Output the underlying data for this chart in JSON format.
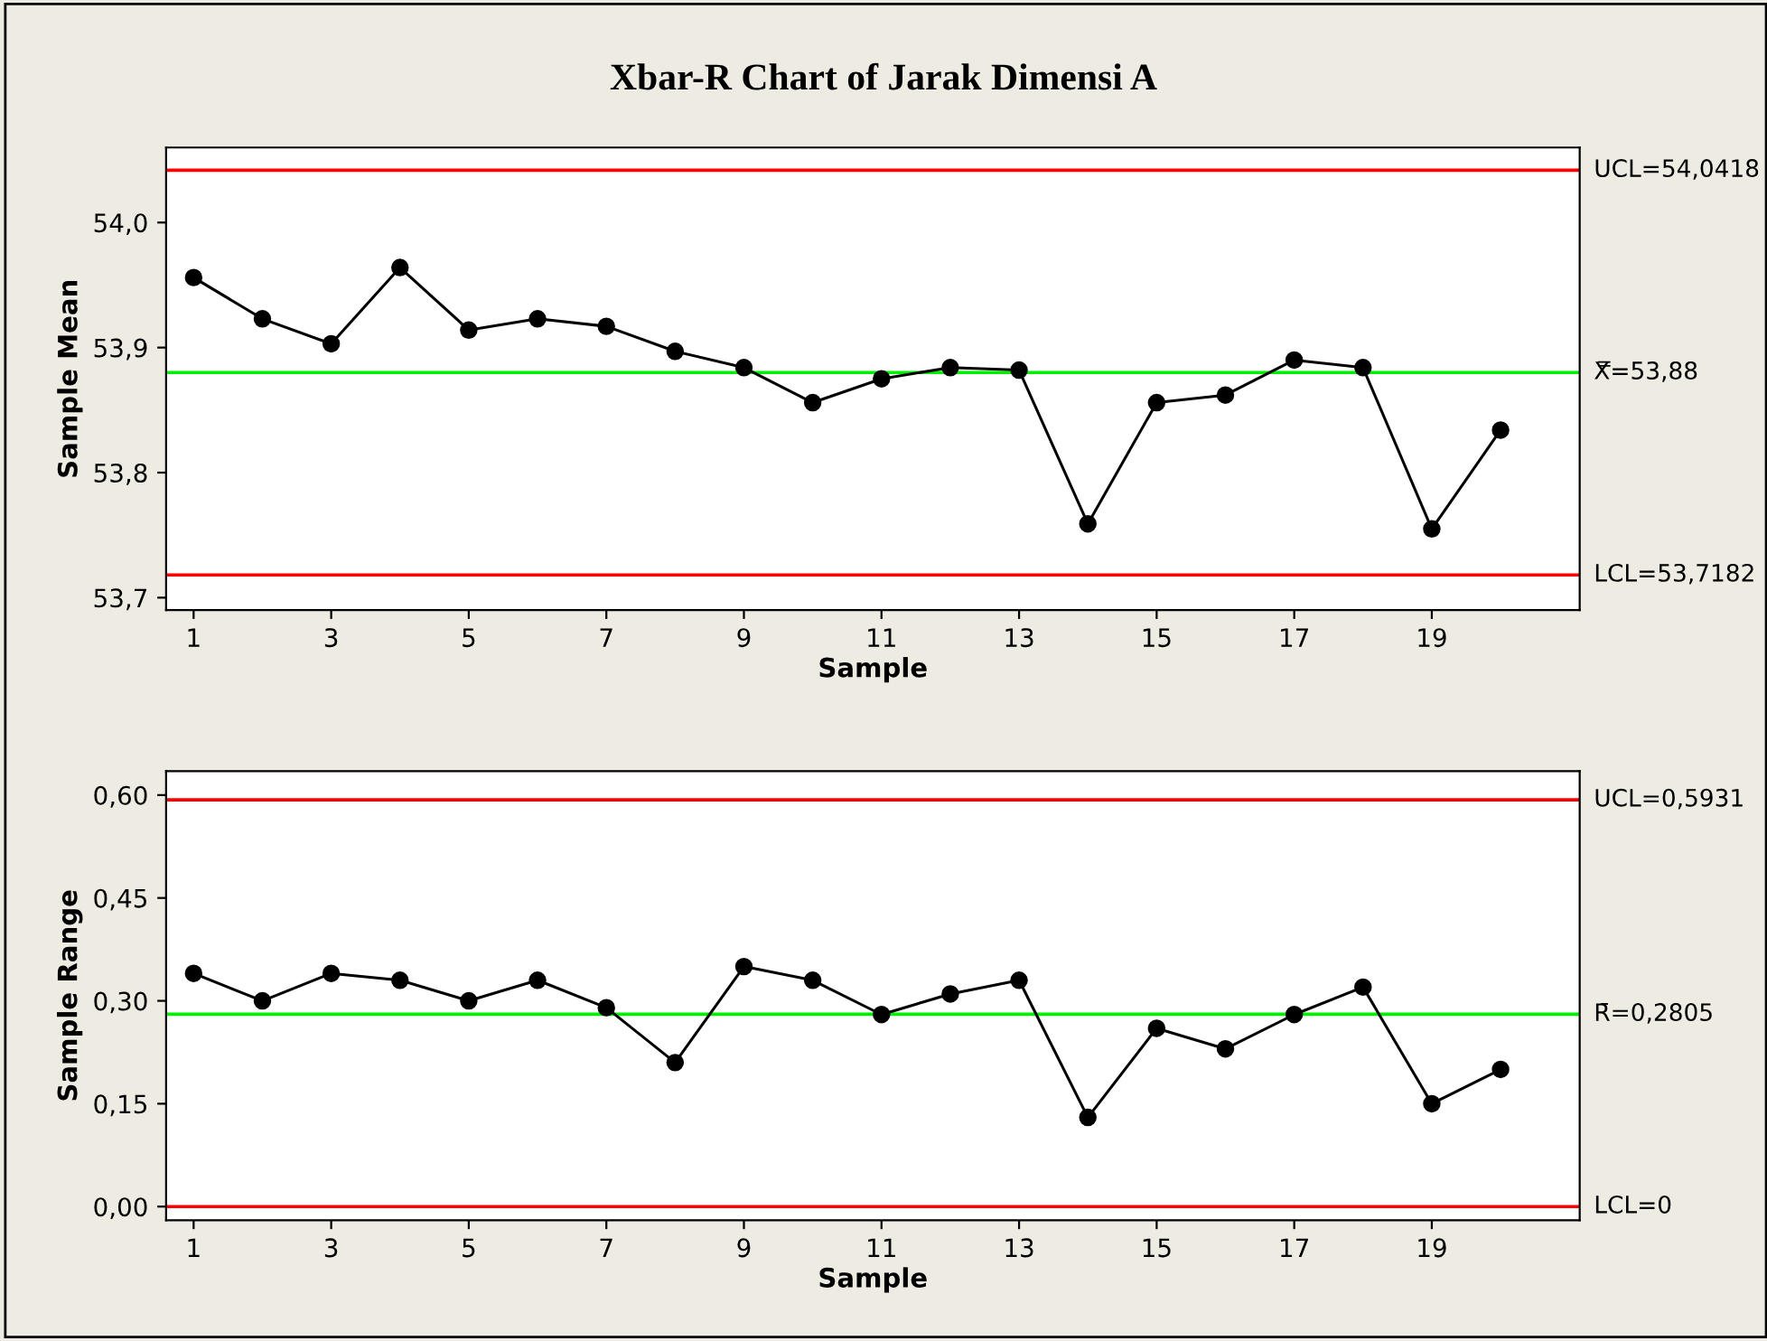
{
  "chart_data": [
    {
      "type": "line",
      "title": "Xbar-R Chart of Jarak Dimensi A",
      "xlabel": "Sample",
      "ylabel": "Sample Mean",
      "x": [
        1,
        2,
        3,
        4,
        5,
        6,
        7,
        8,
        9,
        10,
        11,
        12,
        13,
        14,
        15,
        16,
        17,
        18,
        19,
        20
      ],
      "series": [
        {
          "color": "#000000",
          "values": [
            53.956,
            53.923,
            53.903,
            53.964,
            53.914,
            53.923,
            53.917,
            53.897,
            53.884,
            53.856,
            53.875,
            53.884,
            53.882,
            53.759,
            53.856,
            53.862,
            53.89,
            53.884,
            53.755,
            53.834
          ]
        }
      ],
      "xlim": [
        0.6,
        21.15
      ],
      "xticks": [
        1,
        3,
        5,
        7,
        9,
        11,
        13,
        15,
        17,
        19
      ],
      "ylim": [
        53.69,
        54.06
      ],
      "yticks": [
        {
          "value": 53.7,
          "label": "53,7"
        },
        {
          "value": 53.8,
          "label": "53,8"
        },
        {
          "value": 53.9,
          "label": "53,9"
        },
        {
          "value": 54.0,
          "label": "54,0"
        }
      ],
      "ref_lines": [
        {
          "axis": "y",
          "value": 54.0418,
          "label": "UCL=54,0418",
          "color": "#ff0000"
        },
        {
          "axis": "y",
          "value": 53.88,
          "label": "X̿=53,88",
          "color": "#00ee00"
        },
        {
          "axis": "y",
          "value": 53.7182,
          "label": "LCL=53,7182",
          "color": "#ff0000"
        }
      ],
      "marker": "circle",
      "line_style": "solid",
      "grid": false,
      "legend": false
    },
    {
      "type": "line",
      "xlabel": "Sample",
      "ylabel": "Sample Range",
      "x": [
        1,
        2,
        3,
        4,
        5,
        6,
        7,
        8,
        9,
        10,
        11,
        12,
        13,
        14,
        15,
        16,
        17,
        18,
        19,
        20
      ],
      "series": [
        {
          "color": "#000000",
          "values": [
            0.34,
            0.3,
            0.34,
            0.33,
            0.3,
            0.33,
            0.29,
            0.21,
            0.35,
            0.33,
            0.28,
            0.31,
            0.33,
            0.13,
            0.26,
            0.23,
            0.28,
            0.32,
            0.15,
            0.2
          ]
        }
      ],
      "xlim": [
        0.6,
        21.15
      ],
      "xticks": [
        1,
        3,
        5,
        7,
        9,
        11,
        13,
        15,
        17,
        19
      ],
      "ylim": [
        -0.02,
        0.635
      ],
      "yticks": [
        {
          "value": 0.0,
          "label": "0,00"
        },
        {
          "value": 0.15,
          "label": "0,15"
        },
        {
          "value": 0.3,
          "label": "0,30"
        },
        {
          "value": 0.45,
          "label": "0,45"
        },
        {
          "value": 0.6,
          "label": "0,60"
        }
      ],
      "ref_lines": [
        {
          "axis": "y",
          "value": 0.5931,
          "label": "UCL=0,5931",
          "color": "#ff0000"
        },
        {
          "axis": "y",
          "value": 0.2805,
          "label": "R̄=0,2805",
          "color": "#00ee00"
        },
        {
          "axis": "y",
          "value": 0.0,
          "label": "LCL=0",
          "color": "#ff0000"
        }
      ],
      "marker": "circle",
      "line_style": "solid",
      "grid": false,
      "legend": false
    }
  ]
}
